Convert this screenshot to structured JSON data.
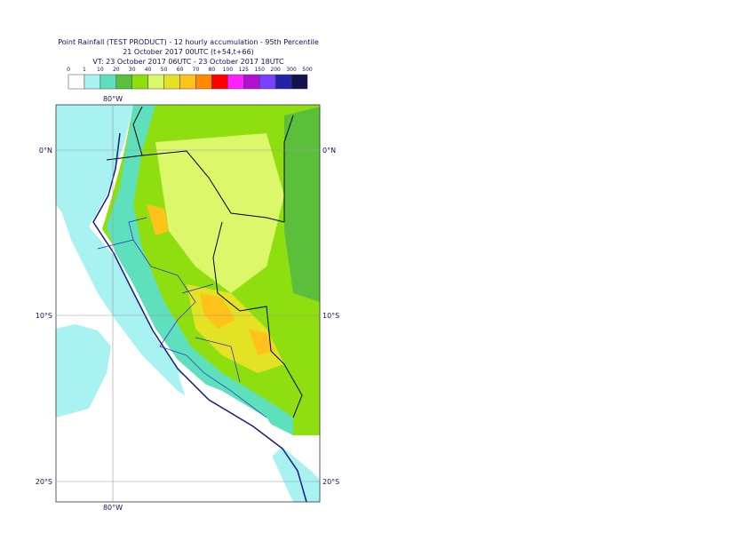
{
  "header": {
    "title": "Point Rainfall (TEST PRODUCT) - 12 hourly accumulation - 95th Percentile",
    "base_time": "21 October 2017 00UTC (t+54,t+66)",
    "valid_time": "VT: 23 October 2017 06UTC - 23 October 2017 18UTC"
  },
  "legend": {
    "labels": [
      "0",
      "1",
      "10",
      "20",
      "30",
      "40",
      "50",
      "60",
      "70",
      "80",
      "100",
      "125",
      "150",
      "200",
      "300",
      "500"
    ],
    "colors": [
      "#ffffff",
      "#a8f2f2",
      "#5fe0bd",
      "#5cbf3c",
      "#8fdf10",
      "#dcf86a",
      "#e4e224",
      "#ffc21a",
      "#ff8a00",
      "#ff0000",
      "#ff20ff",
      "#b010d0",
      "#7a40ff",
      "#2222aa",
      "#12124f"
    ]
  },
  "map": {
    "lon_label": "80°W",
    "lat_labels": [
      "0°N",
      "10°S",
      "20°S"
    ]
  }
}
